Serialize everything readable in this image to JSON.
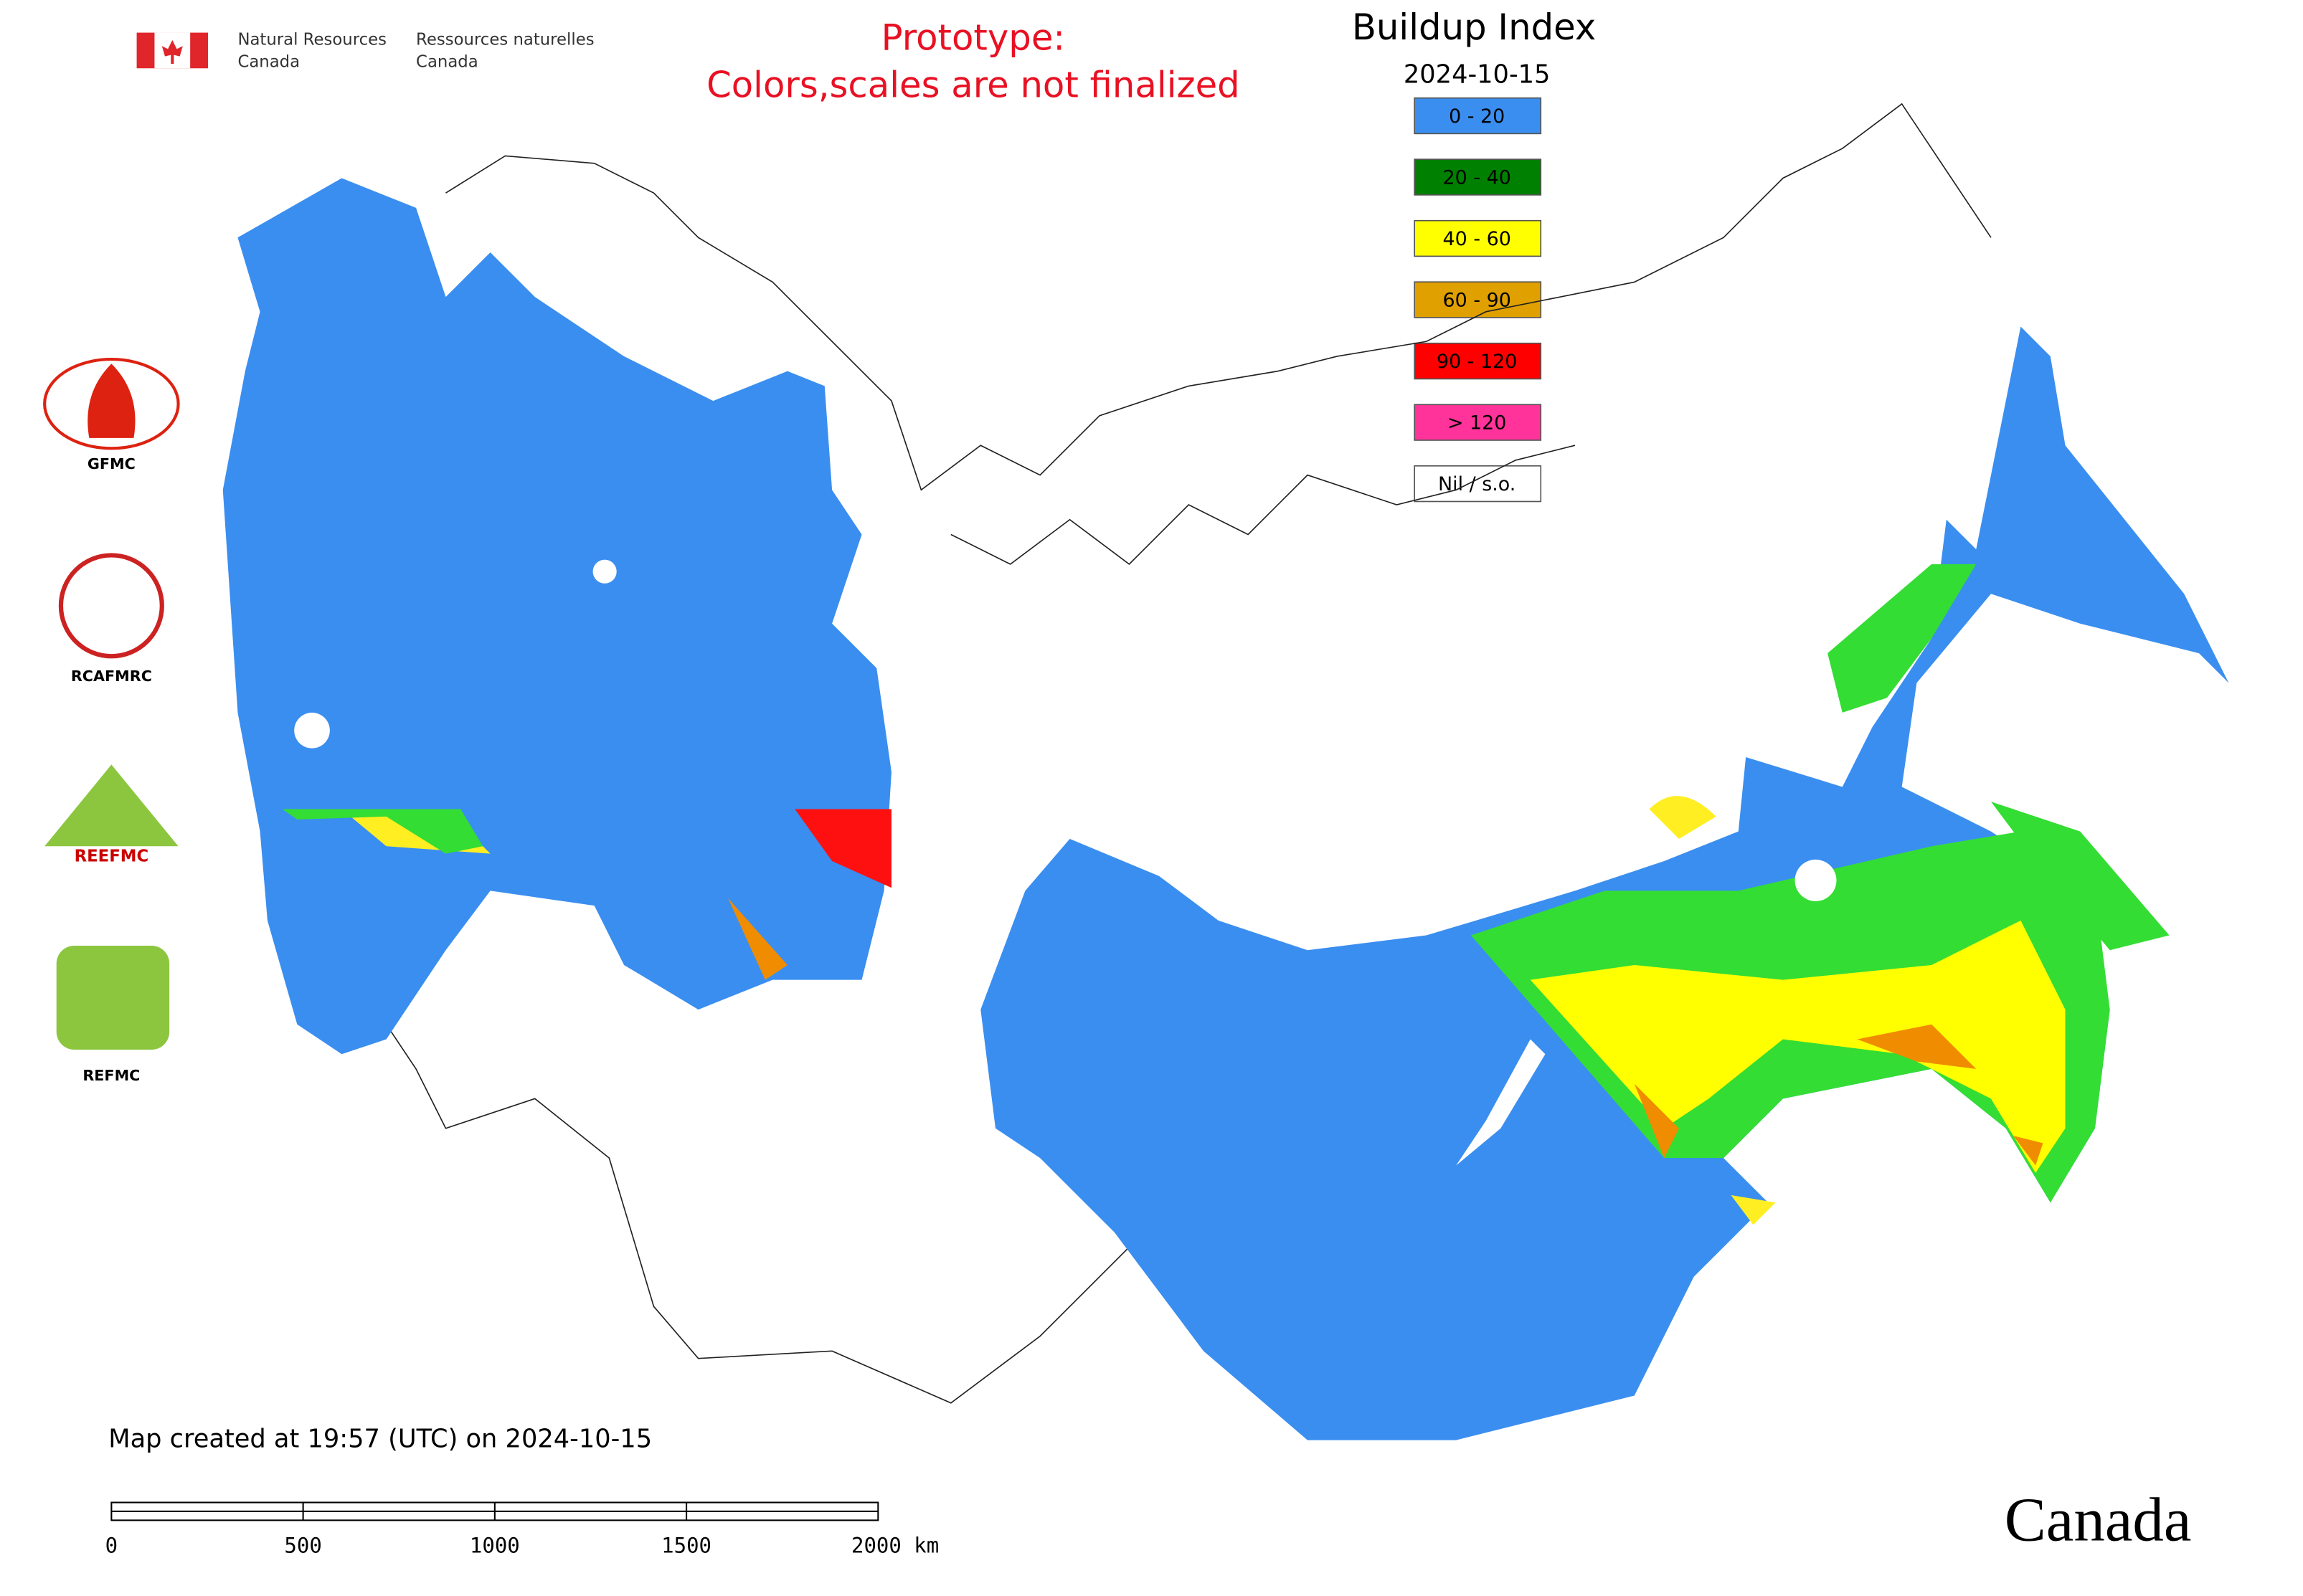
{
  "header": {
    "agency_en_1": "Natural Resources",
    "agency_en_2": "Canada",
    "agency_fr_1": "Ressources naturelles",
    "agency_fr_2": "Canada"
  },
  "notice": [
    "Prototype:",
    "Colors,scales are not finalized"
  ],
  "legend": {
    "title": "Buildup Index",
    "date": "2024-10-15",
    "items": [
      {
        "label": "0 - 20",
        "color": "#3a8ef0"
      },
      {
        "label": "20 - 40",
        "color": "#008000"
      },
      {
        "label": "40 - 60",
        "color": "#ffff00"
      },
      {
        "label": "60 - 90",
        "color": "#e0a000"
      },
      {
        "label": "90 - 120",
        "color": "#ff0000"
      },
      {
        "label": "> 120",
        "color": "#ff3399"
      },
      {
        "label": "Nil / s.o.",
        "color": "#ffffff"
      }
    ]
  },
  "logos": [
    "GFMC",
    "RCAFMRC",
    "REEFMC",
    "REFMC"
  ],
  "footer": {
    "created": "Map created at 19:57 (UTC) on 2024-10-15",
    "scale_labels": [
      "0",
      "500",
      "1000",
      "1500",
      "2000 km"
    ],
    "wordmark": "Canada"
  }
}
